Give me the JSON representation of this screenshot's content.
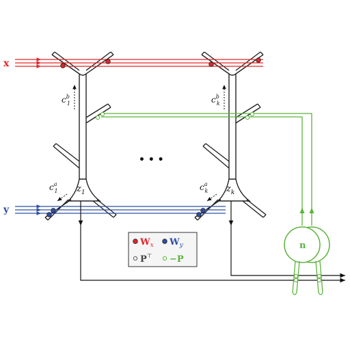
{
  "colors": {
    "x_input": "#e0262b",
    "y_input": "#2f4fa3",
    "feedback": "#5ab23a",
    "neuron": "#222222",
    "legend_border": "#333333",
    "legend_fill": "#f5f5f5"
  },
  "inputs": {
    "x_label": "x",
    "y_label": "y"
  },
  "neurons": [
    {
      "soma_label_main": "z",
      "soma_label_sub": "1",
      "apical_label_main": "c",
      "apical_label_sup": "b",
      "apical_label_sub": "1",
      "basal_label_main": "c",
      "basal_label_sup": "a",
      "basal_label_sub": "1"
    },
    {
      "soma_label_main": "z",
      "soma_label_sub": "k",
      "apical_label_main": "c",
      "apical_label_sup": "b",
      "apical_label_sub": "k",
      "basal_label_main": "c",
      "basal_label_sup": "a",
      "basal_label_sub": "k"
    }
  ],
  "ellipsis": "• • •",
  "interneuron": {
    "label": "n"
  },
  "legend": {
    "wx_main": "W",
    "wx_sub": "x",
    "wy_main": "W",
    "wy_sub": "y",
    "pt_main": "P",
    "pt_sup": "⊤",
    "negp_label": "−P"
  }
}
